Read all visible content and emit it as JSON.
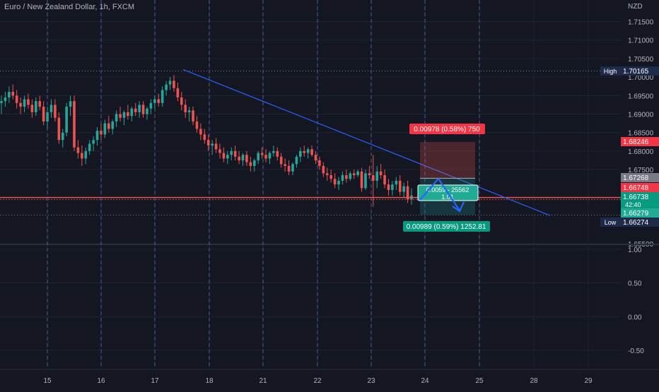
{
  "header": {
    "symbol_title": "Euro / New Zealand Dollar, 1h, FXCM",
    "currency": "NZD"
  },
  "colors": {
    "background": "#141722",
    "up": "#26a69a",
    "down": "#ef5350",
    "trendline": "#2962ff",
    "text": "#b2b5be",
    "grid": "#1f2330"
  },
  "chart_data": [
    {
      "type": "line",
      "subtype": "candlestick",
      "symbol": "Euro / New Zealand Dollar",
      "timeframe": "1h",
      "source": "FXCM",
      "x_ticks": [
        "15",
        "16",
        "17",
        "18",
        "21",
        "22",
        "23",
        "24",
        "25",
        "28",
        "29"
      ],
      "y_ticks": [
        "1.71500",
        "1.71000",
        "1.70500",
        "1.70000",
        "1.69500",
        "1.69000",
        "1.68500",
        "1.68000",
        "1.67500",
        "1.65500"
      ],
      "ylim": [
        1.655,
        1.717
      ],
      "session_separators": [
        "15",
        "16",
        "17",
        "18",
        "21",
        "22",
        "23",
        "24",
        "25"
      ],
      "series": [
        {
          "values": [
            [
              1.693,
              1.695,
              1.69,
              1.6935
            ],
            [
              1.6935,
              1.696,
              1.692,
              1.6945
            ],
            [
              1.6945,
              1.6975,
              1.693,
              1.696
            ],
            [
              1.696,
              1.698,
              1.694,
              1.695
            ],
            [
              1.695,
              1.6965,
              1.6915,
              1.693
            ],
            [
              1.693,
              1.6945,
              1.69,
              1.692
            ],
            [
              1.692,
              1.695,
              1.6905,
              1.694
            ],
            [
              1.694,
              1.6955,
              1.6915,
              1.6925
            ],
            [
              1.6925,
              1.694,
              1.689,
              1.6905
            ],
            [
              1.6905,
              1.6945,
              1.6895,
              1.6935
            ],
            [
              1.6935,
              1.695,
              1.691,
              1.692
            ],
            [
              1.692,
              1.6935,
              1.687,
              1.688
            ],
            [
              1.688,
              1.692,
              1.686,
              1.6905
            ],
            [
              1.6905,
              1.694,
              1.689,
              1.6925
            ],
            [
              1.6925,
              1.694,
              1.688,
              1.689
            ],
            [
              1.689,
              1.6905,
              1.682,
              1.683
            ],
            [
              1.683,
              1.686,
              1.681,
              1.685
            ],
            [
              1.685,
              1.693,
              1.684,
              1.692
            ],
            [
              1.692,
              1.695,
              1.6895,
              1.6935
            ],
            [
              1.6935,
              1.695,
              1.68,
              1.681
            ],
            [
              1.681,
              1.683,
              1.678,
              1.6795
            ],
            [
              1.6795,
              1.6815,
              1.676,
              1.678
            ],
            [
              1.678,
              1.681,
              1.6765,
              1.68
            ],
            [
              1.68,
              1.683,
              1.679,
              1.682
            ],
            [
              1.682,
              1.684,
              1.68,
              1.683
            ],
            [
              1.683,
              1.6865,
              1.6815,
              1.6855
            ],
            [
              1.6855,
              1.6875,
              1.683,
              1.6845
            ],
            [
              1.6845,
              1.6885,
              1.6835,
              1.6875
            ],
            [
              1.6875,
              1.6895,
              1.685,
              1.686
            ],
            [
              1.686,
              1.6885,
              1.6845,
              1.688
            ],
            [
              1.688,
              1.691,
              1.6865,
              1.69
            ],
            [
              1.69,
              1.692,
              1.688,
              1.689
            ],
            [
              1.689,
              1.691,
              1.687,
              1.6905
            ],
            [
              1.6905,
              1.6925,
              1.6885,
              1.6895
            ],
            [
              1.6895,
              1.692,
              1.688,
              1.6915
            ],
            [
              1.6915,
              1.693,
              1.6895,
              1.6905
            ],
            [
              1.6905,
              1.6935,
              1.689,
              1.6925
            ],
            [
              1.6925,
              1.6935,
              1.689,
              1.69
            ],
            [
              1.69,
              1.692,
              1.6885,
              1.6915
            ],
            [
              1.6915,
              1.694,
              1.69,
              1.693
            ],
            [
              1.693,
              1.695,
              1.6915,
              1.694
            ],
            [
              1.694,
              1.6955,
              1.692,
              1.693
            ],
            [
              1.693,
              1.6975,
              1.692,
              1.6965
            ],
            [
              1.6965,
              1.699,
              1.695,
              1.698
            ],
            [
              1.698,
              1.7,
              1.6965,
              1.699
            ],
            [
              1.699,
              1.7005,
              1.696,
              1.697
            ],
            [
              1.697,
              1.6985,
              1.6935,
              1.6945
            ],
            [
              1.6945,
              1.696,
              1.691,
              1.6925
            ],
            [
              1.6925,
              1.694,
              1.689,
              1.6905
            ],
            [
              1.6905,
              1.692,
              1.688,
              1.691
            ],
            [
              1.691,
              1.692,
              1.687,
              1.688
            ],
            [
              1.688,
              1.6895,
              1.685,
              1.686
            ],
            [
              1.686,
              1.6875,
              1.683,
              1.6845
            ],
            [
              1.6845,
              1.686,
              1.682,
              1.683
            ],
            [
              1.683,
              1.6845,
              1.68,
              1.6815
            ],
            [
              1.6815,
              1.683,
              1.679,
              1.682
            ],
            [
              1.682,
              1.6835,
              1.6795,
              1.6805
            ],
            [
              1.6805,
              1.682,
              1.678,
              1.6795
            ],
            [
              1.6795,
              1.681,
              1.677,
              1.678
            ],
            [
              1.678,
              1.68,
              1.6765,
              1.679
            ],
            [
              1.679,
              1.681,
              1.6775,
              1.68
            ],
            [
              1.68,
              1.6815,
              1.6775,
              1.6785
            ],
            [
              1.6785,
              1.68,
              1.6765,
              1.6775
            ],
            [
              1.6775,
              1.6795,
              1.676,
              1.679
            ],
            [
              1.679,
              1.68,
              1.676,
              1.677
            ],
            [
              1.677,
              1.6785,
              1.6745,
              1.676
            ],
            [
              1.676,
              1.678,
              1.6745,
              1.6775
            ],
            [
              1.6775,
              1.68,
              1.6765,
              1.6795
            ],
            [
              1.6795,
              1.681,
              1.678,
              1.679
            ],
            [
              1.679,
              1.6805,
              1.677,
              1.678
            ],
            [
              1.678,
              1.68,
              1.6765,
              1.6795
            ],
            [
              1.6795,
              1.6815,
              1.6785,
              1.68
            ],
            [
              1.68,
              1.681,
              1.6775,
              1.6785
            ],
            [
              1.6785,
              1.6795,
              1.6755,
              1.6765
            ],
            [
              1.6765,
              1.678,
              1.6745,
              1.676
            ],
            [
              1.676,
              1.6775,
              1.6735,
              1.6745
            ],
            [
              1.6745,
              1.677,
              1.6735,
              1.6765
            ],
            [
              1.6765,
              1.679,
              1.6755,
              1.6785
            ],
            [
              1.6785,
              1.681,
              1.677,
              1.68
            ],
            [
              1.68,
              1.6815,
              1.6785,
              1.6795
            ],
            [
              1.6795,
              1.681,
              1.678,
              1.6805
            ],
            [
              1.6805,
              1.6815,
              1.6785,
              1.679
            ],
            [
              1.679,
              1.68,
              1.6765,
              1.6775
            ],
            [
              1.6775,
              1.6785,
              1.675,
              1.676
            ],
            [
              1.676,
              1.677,
              1.673,
              1.674
            ],
            [
              1.674,
              1.6755,
              1.672,
              1.6735
            ],
            [
              1.6735,
              1.675,
              1.6715,
              1.6725
            ],
            [
              1.6725,
              1.674,
              1.67,
              1.671
            ],
            [
              1.671,
              1.673,
              1.6695,
              1.672
            ],
            [
              1.672,
              1.6745,
              1.671,
              1.6735
            ],
            [
              1.6735,
              1.675,
              1.6715,
              1.6725
            ],
            [
              1.6725,
              1.6745,
              1.672,
              1.674
            ],
            [
              1.674,
              1.675,
              1.6725,
              1.6735
            ],
            [
              1.6735,
              1.675,
              1.673,
              1.6745
            ],
            [
              1.6745,
              1.6755,
              1.669,
              1.67
            ],
            [
              1.67,
              1.675,
              1.6695,
              1.674
            ],
            [
              1.674,
              1.676,
              1.6725,
              1.6735
            ],
            [
              1.6735,
              1.679,
              1.665,
              1.672
            ],
            [
              1.672,
              1.676,
              1.67,
              1.6745
            ],
            [
              1.6745,
              1.6765,
              1.6725,
              1.6735
            ],
            [
              1.6735,
              1.675,
              1.67,
              1.671
            ],
            [
              1.671,
              1.6725,
              1.668,
              1.6695
            ],
            [
              1.6695,
              1.672,
              1.668,
              1.671
            ],
            [
              1.671,
              1.673,
              1.6695,
              1.672
            ],
            [
              1.672,
              1.6735,
              1.668,
              1.669
            ],
            [
              1.669,
              1.6715,
              1.6675,
              1.6705
            ],
            [
              1.6705,
              1.672,
              1.666,
              1.667
            ],
            [
              1.667,
              1.67,
              1.6655,
              1.668
            ]
          ]
        }
      ],
      "price_tags": [
        {
          "label": "High",
          "price": "1.70165"
        },
        {
          "label": "",
          "price": "1.68246"
        },
        {
          "label": "",
          "price": "1.67268"
        },
        {
          "label": "",
          "price": "1.66748"
        },
        {
          "label": "",
          "price": "1.66738",
          "sub": "42:40"
        },
        {
          "label": "",
          "price": "1.66279"
        },
        {
          "label": "Low",
          "price": "1.66274"
        }
      ],
      "position": {
        "stop_label": "0.00978 (0.58%) 750",
        "target_label": "0.00989 (0.59%) 1252.81",
        "center_label_line1": "0.0059 - 25562",
        "center_label_line2": "1.01",
        "entry": 1.67268,
        "stop": 1.68246,
        "target": 1.66279
      },
      "current_price_line": 1.66748,
      "trendline": {
        "from": [
          1.70165
        ],
        "to": [
          1.6628
        ]
      }
    },
    {
      "type": "line",
      "subtype": "oscillator",
      "y_ticks": [
        "1.00",
        "0.50",
        "0.00",
        "-0.50"
      ],
      "ylim": [
        -0.75,
        1.05
      ]
    }
  ]
}
